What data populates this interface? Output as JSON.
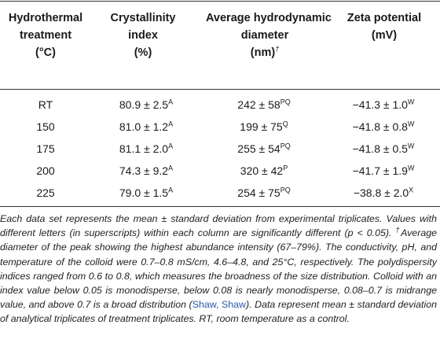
{
  "table": {
    "headers": [
      {
        "lines": [
          "Hydrothermal",
          "treatment",
          "(°C)"
        ]
      },
      {
        "lines": [
          "Crystallinity",
          "index",
          "(%)"
        ]
      },
      {
        "lines": [
          "Average hydrodynamic",
          "diameter",
          "(nm)"
        ],
        "dagger": "†"
      },
      {
        "lines": [
          "Zeta potential",
          "(mV)"
        ]
      }
    ],
    "rows": [
      {
        "treatment": "RT",
        "crystallinity": "80.9 ± 2.5",
        "cryst_sup": "A",
        "diameter": "242 ± 58",
        "diam_sup": "PQ",
        "zeta": "−41.3 ± 1.0",
        "zeta_sup": "W"
      },
      {
        "treatment": "150",
        "crystallinity": "81.0 ± 1.2",
        "cryst_sup": "A",
        "diameter": "199 ± 75",
        "diam_sup": "Q",
        "zeta": "−41.8 ± 0.8",
        "zeta_sup": "W"
      },
      {
        "treatment": "175",
        "crystallinity": "81.1 ± 2.0",
        "cryst_sup": "A",
        "diameter": "255 ± 54",
        "diam_sup": "PQ",
        "zeta": "−41.8 ± 0.5",
        "zeta_sup": "W"
      },
      {
        "treatment": "200",
        "crystallinity": "74.3 ± 9.2",
        "cryst_sup": "A",
        "diameter": "320 ± 42",
        "diam_sup": "P",
        "zeta": "−41.7 ± 1.9",
        "zeta_sup": "W"
      },
      {
        "treatment": "225",
        "crystallinity": "79.0 ± 1.5",
        "cryst_sup": "A",
        "diameter": "254 ± 75",
        "diam_sup": "PQ",
        "zeta": "−38.8 ± 2.0",
        "zeta_sup": "X"
      }
    ]
  },
  "footnote": {
    "part1": "Each data set represents the mean ± standard deviation from experimental triplicates. Values with different letters (in superscripts) within each column are significantly different (p < 0.05).",
    "dagger": "†",
    "part2": "Average diameter of the peak showing the highest abundance intensity (67–79%). The conductivity, pH, and temperature of the colloid were 0.7–0.8 mS/cm, 4.6–4.8, and 25°C, respectively. The polydispersity indices ranged from 0.6 to 0.8, which measures the broadness of the size distribution. Colloid with an index value below 0.05 is monodisperse, below 0.08 is nearly monodisperse, 0.08–0.7 is midrange value, and above 0.7 is a broad distribution (",
    "citation": "Shaw, Shaw",
    "part3": "). Data represent mean ± standard deviation of analytical triplicates of treatment triplicates. RT, room temperature as a control."
  }
}
